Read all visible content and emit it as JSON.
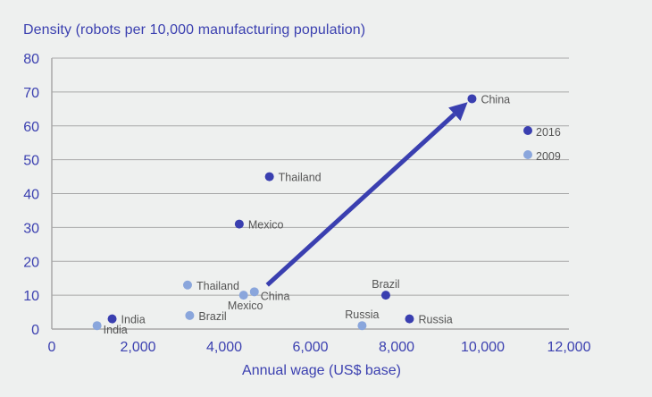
{
  "chart_data": {
    "type": "scatter",
    "title": "",
    "ylabel": "Density (robots per 10,000 manufacturing population)",
    "xlabel": "Annual wage (US$ base)",
    "xlim": [
      0,
      12000
    ],
    "ylim": [
      0,
      80
    ],
    "x_ticks": [
      0,
      2000,
      4000,
      6000,
      8000,
      10000,
      12000
    ],
    "x_tick_labels": [
      "0",
      "2,000",
      "4,000",
      "6,000",
      "8,000",
      "10,000",
      "12,000"
    ],
    "y_ticks": [
      0,
      10,
      20,
      30,
      40,
      50,
      60,
      70,
      80
    ],
    "y_tick_labels": [
      "0",
      "10",
      "20",
      "30",
      "40",
      "50",
      "60",
      "70",
      "80"
    ],
    "grid": "horizontal",
    "legend": {
      "position": "right",
      "entries": [
        {
          "label": "2016",
          "color": "#3a3fb0"
        },
        {
          "label": "2009",
          "color": "#8aa6dc"
        }
      ]
    },
    "series": [
      {
        "name": "2009",
        "color": "#8aa6dc",
        "points": [
          {
            "label": "India",
            "x": 1050,
            "y": 1,
            "label_pos": "right-below"
          },
          {
            "label": "Thailand",
            "x": 3150,
            "y": 13,
            "label_pos": "right"
          },
          {
            "label": "Brazil",
            "x": 3200,
            "y": 4,
            "label_pos": "right"
          },
          {
            "label": "Mexico",
            "x": 4450,
            "y": 10,
            "label_pos": "below"
          },
          {
            "label": "China",
            "x": 4700,
            "y": 11,
            "label_pos": "right-below"
          },
          {
            "label": "Russia",
            "x": 7200,
            "y": 1,
            "label_pos": "above"
          }
        ]
      },
      {
        "name": "2016",
        "color": "#3a3fb0",
        "points": [
          {
            "label": "India",
            "x": 1400,
            "y": 3,
            "label_pos": "right"
          },
          {
            "label": "Thailand",
            "x": 5050,
            "y": 45,
            "label_pos": "right"
          },
          {
            "label": "Brazil",
            "x": 7750,
            "y": 10,
            "label_pos": "above"
          },
          {
            "label": "Mexico",
            "x": 4350,
            "y": 31,
            "label_pos": "right"
          },
          {
            "label": "China",
            "x": 9750,
            "y": 68,
            "label_pos": "right"
          },
          {
            "label": "Russia",
            "x": 8300,
            "y": 3,
            "label_pos": "right"
          }
        ]
      }
    ],
    "annotations": [
      {
        "type": "arrow",
        "from": {
          "x": 5000,
          "y": 13
        },
        "to": {
          "x": 9650,
          "y": 67
        },
        "color": "#3a3fb0",
        "meaning": "China 2009 to 2016"
      }
    ]
  },
  "colors": {
    "background": "#eef0ef",
    "axis_text": "#3b40b0",
    "gridline": "#a8a8a8",
    "point_label": "#555555"
  }
}
